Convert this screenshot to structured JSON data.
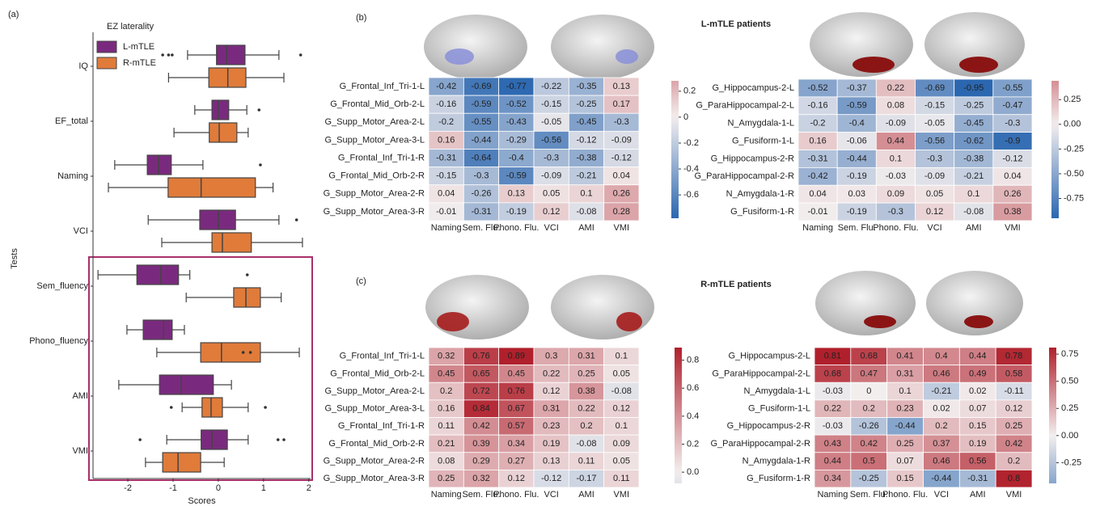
{
  "chart_data": [
    {
      "type": "boxplot",
      "panel_label": "(a)",
      "xlabel": "Scores",
      "ylabel": "Tests",
      "legend_title": "EZ laterality",
      "legend": "upper left",
      "categories": [
        "IQ",
        "EF_total",
        "Naming",
        "VCI",
        "Sem_fluency",
        "Phono_fluency",
        "AMI",
        "VMI"
      ],
      "xlim": [
        -2.77,
        2.04
      ],
      "xticks": [
        -2,
        -1,
        0,
        1,
        2
      ],
      "series": [
        {
          "name": "L-mTLE",
          "color": "#7a2a7e",
          "whislo": [
            -0.68,
            -0.52,
            -2.29,
            -1.55,
            -2.66,
            -2.02,
            -2.2,
            -1.14
          ],
          "q1": [
            -0.04,
            -0.14,
            -1.57,
            -0.41,
            -1.8,
            -1.66,
            -1.3,
            -0.38
          ],
          "med": [
            0.18,
            0,
            -1.32,
            0,
            -1.27,
            -1.21,
            -0.82,
            -0.14
          ],
          "q3": [
            0.59,
            0.23,
            -1.04,
            0.38,
            -0.88,
            -1.02,
            -0.11,
            0.2
          ],
          "whishi": [
            1.34,
            0.63,
            -0.34,
            1.34,
            -0.63,
            -0.75,
            0.29,
            0.66
          ],
          "fliers": [
            [
              -1.23,
              -1.1,
              -1.02,
              1.82
            ],
            [
              0.9
            ],
            [
              0.93
            ],
            [
              1.73
            ],
            [
              0.64
            ],
            [],
            [],
            [
              -1.73,
              1.32,
              1.45
            ]
          ]
        },
        {
          "name": "R-mTLE",
          "color": "#e07b3a",
          "whislo": [
            -1.1,
            -0.98,
            -2.43,
            -1.25,
            -0.71,
            -1.36,
            -0.8,
            -1.61
          ],
          "q1": [
            -0.21,
            -0.2,
            -1.11,
            -0.14,
            0.34,
            -0.39,
            -0.36,
            -1.23
          ],
          "med": [
            0.21,
            0.02,
            -0.38,
            0.09,
            0.61,
            0.07,
            -0.16,
            -0.89
          ],
          "q3": [
            0.61,
            0.41,
            0.82,
            0.73,
            0.93,
            0.93,
            0.09,
            -0.39
          ],
          "whishi": [
            1.45,
            0.66,
            1.21,
            1.86,
            1.39,
            1.79,
            0.66,
            0.13
          ],
          "fliers": [
            [],
            [],
            [],
            [],
            [],
            [
              0.55,
              0.71
            ],
            [
              -1.04,
              1.04
            ],
            []
          ]
        }
      ]
    },
    {
      "type": "heatmap",
      "panel_label": "(b)",
      "title": "L-mTLE patients",
      "rows": [
        "G_Frontal_Inf_Tri-1-L",
        "G_Frontal_Mid_Orb-2-L",
        "G_Supp_Motor_Area-2-L",
        "G_Supp_Motor_Area-3-L",
        "G_Frontal_Inf_Tri-1-R",
        "G_Frontal_Mid_Orb-2-R",
        "G_Supp_Motor_Area-2-R",
        "G_Supp_Motor_Area-3-R"
      ],
      "columns": [
        "Naming",
        "Sem. Flu.",
        "Phono. Flu.",
        "VCI",
        "AMI",
        "VMI"
      ],
      "z": [
        [
          -0.42,
          -0.69,
          -0.77,
          -0.22,
          -0.35,
          0.13
        ],
        [
          -0.16,
          -0.59,
          -0.52,
          -0.15,
          -0.25,
          0.17
        ],
        [
          -0.2,
          -0.55,
          -0.43,
          -0.05,
          -0.45,
          -0.3
        ],
        [
          0.16,
          -0.44,
          -0.29,
          -0.56,
          -0.12,
          -0.09
        ],
        [
          -0.31,
          -0.64,
          -0.4,
          -0.3,
          -0.38,
          -0.12
        ],
        [
          -0.15,
          -0.3,
          -0.59,
          -0.09,
          -0.21,
          0.04
        ],
        [
          0.04,
          -0.26,
          0.13,
          0.05,
          0.1,
          0.26
        ],
        [
          -0.01,
          -0.31,
          -0.19,
          0.12,
          -0.08,
          0.28
        ]
      ],
      "zlim": [
        -0.78,
        0.28
      ],
      "zticks": [
        0.2,
        0,
        -0.2,
        -0.4,
        -0.6
      ],
      "colors": [
        "#2b67b0",
        "#f3eeee",
        "#b0202c"
      ]
    },
    {
      "type": "heatmap",
      "rows": [
        "G_Hippocampus-2-L",
        "G_ParaHippocampal-2-L",
        "N_Amygdala-1-L",
        "G_Fusiform-1-L",
        "G_Hippocampus-2-R",
        "G_ParaHippocampal-2-R",
        "N_Amygdala-1-R",
        "G_Fusiform-1-R"
      ],
      "columns": [
        "Naming",
        "Sem. Flu.",
        "Phono. Flu.",
        "VCI",
        "AMI",
        "VMI"
      ],
      "z": [
        [
          -0.52,
          -0.37,
          0.22,
          -0.69,
          -0.95,
          -0.55
        ],
        [
          -0.16,
          -0.59,
          0.08,
          -0.15,
          -0.25,
          -0.47
        ],
        [
          -0.2,
          -0.4,
          -0.09,
          -0.05,
          -0.45,
          -0.3
        ],
        [
          0.16,
          -0.06,
          0.44,
          -0.56,
          -0.62,
          -0.9
        ],
        [
          -0.31,
          -0.44,
          0.1,
          -0.3,
          -0.38,
          -0.12
        ],
        [
          -0.42,
          -0.19,
          -0.03,
          -0.09,
          -0.21,
          0.04
        ],
        [
          0.04,
          0.03,
          0.09,
          0.05,
          0.1,
          0.26
        ],
        [
          -0.01,
          -0.19,
          -0.3,
          0.12,
          -0.08,
          0.38
        ]
      ],
      "zlim": [
        -0.95,
        0.44
      ],
      "zticks": [
        0.25,
        {
          "value": 0,
          "label": "0.00"
        },
        -0.25,
        {
          "value": -0.5,
          "label": "-0.50"
        },
        -0.75
      ],
      "colors": [
        "#2b67b0",
        "#f3eeee",
        "#b0202c"
      ]
    },
    {
      "type": "heatmap",
      "panel_label": "(c)",
      "title": "R-mTLE patients",
      "rows": [
        "G_Frontal_Inf_Tri-1-L",
        "G_Frontal_Mid_Orb-2-L",
        "G_Supp_Motor_Area-2-L",
        "G_Supp_Motor_Area-3-L",
        "G_Frontal_Inf_Tri-1-R",
        "G_Frontal_Mid_Orb-2-R",
        "G_Supp_Motor_Area-2-R",
        "G_Supp_Motor_Area-3-R"
      ],
      "columns": [
        "Naming",
        "Sem. Flu.",
        "Phono. Flu.",
        "VCI",
        "AMI",
        "VMI"
      ],
      "z": [
        [
          0.32,
          0.76,
          0.89,
          0.3,
          0.31,
          0.1
        ],
        [
          0.45,
          0.65,
          0.45,
          0.22,
          0.25,
          0.05
        ],
        [
          0.2,
          0.72,
          0.76,
          0.12,
          0.38,
          -0.08
        ],
        [
          0.16,
          0.84,
          0.67,
          0.31,
          0.22,
          0.12
        ],
        [
          0.11,
          0.42,
          0.57,
          0.23,
          0.2,
          0.1
        ],
        [
          0.21,
          0.39,
          0.34,
          0.19,
          -0.08,
          0.09
        ],
        [
          0.08,
          0.29,
          0.27,
          0.13,
          0.11,
          0.05
        ],
        [
          0.25,
          0.32,
          0.12,
          -0.12,
          -0.17,
          0.11
        ]
      ],
      "zlim": [
        -0.08,
        0.89
      ],
      "zticks": [
        0.8,
        0.6,
        0.4,
        0.2,
        {
          "value": 0,
          "label": "0.0"
        }
      ],
      "colors": [
        "#2b67b0",
        "#f3eeee",
        "#b0202c"
      ]
    },
    {
      "type": "heatmap",
      "rows": [
        "G_Hippocampus-2-L",
        "G_ParaHippocampal-2-L",
        "N_Amygdala-1-L",
        "G_Fusiform-1-L",
        "G_Hippocampus-2-R",
        "G_ParaHippocampal-2-R",
        "N_Amygdala-1-R",
        "G_Fusiform-1-R"
      ],
      "columns": [
        "Naming",
        "Sem. Flu.",
        "Phono. Flu.",
        "VCI",
        "AMI",
        "VMI"
      ],
      "z": [
        [
          0.81,
          0.68,
          0.41,
          0.4,
          0.44,
          0.78
        ],
        [
          0.68,
          0.47,
          0.31,
          0.46,
          0.49,
          0.58
        ],
        [
          -0.03,
          0,
          0.1,
          -0.21,
          0.02,
          -0.11
        ],
        [
          0.22,
          0.2,
          0.23,
          0.02,
          0.07,
          0.12
        ],
        [
          -0.03,
          -0.26,
          -0.44,
          0.2,
          0.15,
          0.25
        ],
        [
          0.43,
          0.42,
          0.25,
          0.37,
          0.19,
          0.42
        ],
        [
          0.44,
          0.5,
          0.07,
          0.46,
          0.56,
          0.2
        ],
        [
          0.34,
          -0.25,
          0.15,
          -0.44,
          -0.31,
          0.8
        ]
      ],
      "zlim": [
        -0.44,
        0.81
      ],
      "zticks": [
        0.75,
        {
          "value": 0.5,
          "label": "0.50"
        },
        0.25,
        {
          "value": 0,
          "label": "0.00"
        },
        -0.25
      ],
      "colors": [
        "#2b67b0",
        "#f3eeee",
        "#b0202c"
      ]
    }
  ]
}
